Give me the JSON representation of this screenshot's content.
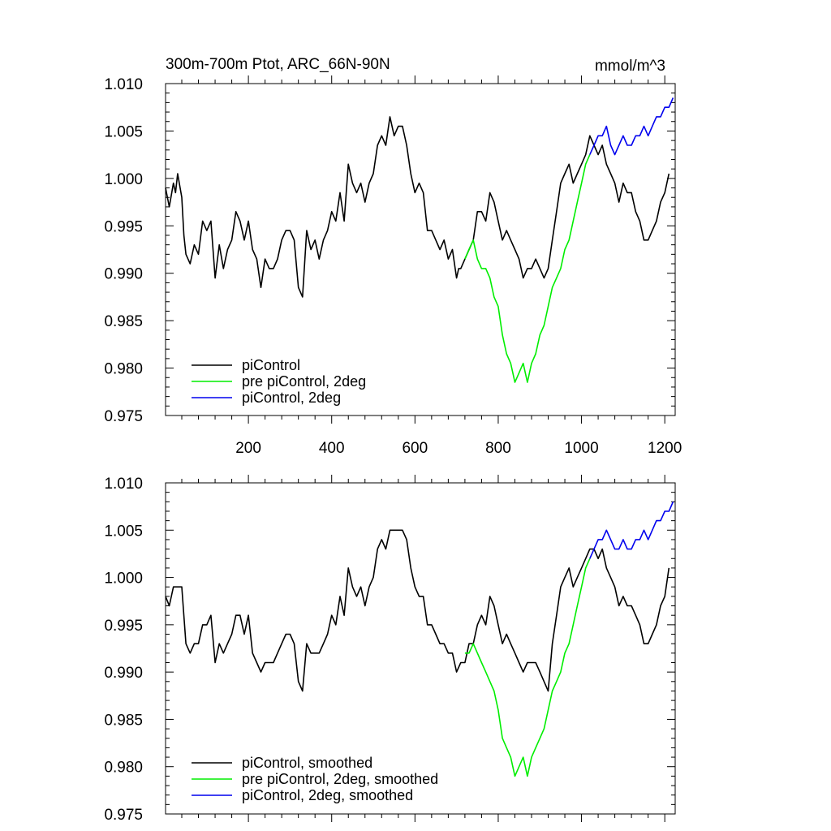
{
  "chart_data": [
    {
      "type": "line",
      "title": "300m-700m Ptot, ARC_66N-90N",
      "units": "mmol/m^3",
      "xlim": [
        1,
        1225
      ],
      "ylim": [
        0.975,
        1.01
      ],
      "x_ticks": [
        200,
        400,
        600,
        800,
        1000,
        1200
      ],
      "x_tick_labels": [
        "200",
        "400",
        "600",
        "800",
        "1000",
        "1200"
      ],
      "y_ticks": [
        0.975,
        0.98,
        0.985,
        0.99,
        0.995,
        1.0,
        1.005,
        1.01
      ],
      "y_tick_labels": [
        "0.975",
        "0.980",
        "0.985",
        "0.990",
        "0.995",
        "1.000",
        "1.005",
        "1.010"
      ],
      "legend_position": "bottom-left",
      "series": [
        {
          "name": "piControl",
          "color": "#000000",
          "x": [
            1,
            10,
            20,
            25,
            30,
            40,
            45,
            50,
            55,
            60,
            70,
            80,
            90,
            100,
            110,
            120,
            130,
            140,
            150,
            160,
            170,
            180,
            190,
            200,
            210,
            220,
            230,
            240,
            250,
            260,
            270,
            280,
            290,
            300,
            310,
            320,
            330,
            340,
            350,
            360,
            370,
            380,
            390,
            400,
            410,
            420,
            430,
            440,
            450,
            460,
            470,
            480,
            490,
            500,
            510,
            520,
            530,
            540,
            550,
            560,
            570,
            580,
            590,
            600,
            610,
            620,
            630,
            640,
            650,
            660,
            670,
            680,
            690,
            700,
            705,
            710,
            720,
            730,
            740,
            750,
            760,
            770,
            780,
            790,
            800,
            810,
            820,
            830,
            840,
            850,
            860,
            870,
            880,
            890,
            900,
            910,
            920,
            930,
            940,
            950,
            960,
            970,
            980,
            990,
            1000,
            1010,
            1020,
            1030,
            1040,
            1050,
            1060,
            1070,
            1080,
            1090,
            1100,
            1110,
            1120,
            1130,
            1140,
            1150,
            1160,
            1170,
            1180,
            1190,
            1200,
            1210
          ],
          "y": [
            0.999,
            0.997,
            0.9995,
            0.9985,
            1.0005,
            0.998,
            0.994,
            0.992,
            0.9915,
            0.991,
            0.993,
            0.992,
            0.9955,
            0.9945,
            0.9955,
            0.9895,
            0.993,
            0.9905,
            0.9925,
            0.9935,
            0.9965,
            0.9955,
            0.9935,
            0.9955,
            0.9925,
            0.9915,
            0.9885,
            0.9915,
            0.9905,
            0.9905,
            0.9915,
            0.9935,
            0.9945,
            0.9945,
            0.9935,
            0.9885,
            0.9875,
            0.9945,
            0.9925,
            0.9935,
            0.9915,
            0.9935,
            0.9945,
            0.9965,
            0.9955,
            0.9985,
            0.9955,
            1.0015,
            0.9995,
            0.9985,
            0.9995,
            0.9975,
            0.9995,
            1.0005,
            1.0035,
            1.0045,
            1.0035,
            1.0065,
            1.0045,
            1.0055,
            1.0055,
            1.0035,
            1.0005,
            0.9985,
            0.9995,
            0.9985,
            0.9945,
            0.9945,
            0.9935,
            0.9925,
            0.9935,
            0.9915,
            0.9925,
            0.9895,
            0.9905,
            0.9905,
            0.9915,
            0.9925,
            0.9935,
            0.9965,
            0.9965,
            0.9955,
            0.9985,
            0.9975,
            0.9955,
            0.9935,
            0.9945,
            0.9935,
            0.9925,
            0.9915,
            0.9895,
            0.9905,
            0.9905,
            0.9915,
            0.9905,
            0.9895,
            0.9905,
            0.9935,
            0.9965,
            0.9995,
            1.0005,
            1.0015,
            0.9995,
            1.0005,
            1.0015,
            1.0025,
            1.0045,
            1.0035,
            1.0025,
            1.0035,
            1.0015,
            1.0005,
            0.9995,
            0.9975,
            0.9995,
            0.9985,
            0.9985,
            0.9965,
            0.9955,
            0.9935,
            0.9935,
            0.9945,
            0.9955,
            0.9975,
            0.9985,
            1.0005
          ]
        },
        {
          "name": "pre piControl, 2deg",
          "color": "#00ee00",
          "x": [
            720,
            730,
            740,
            750,
            760,
            770,
            780,
            790,
            800,
            810,
            820,
            830,
            840,
            850,
            860,
            870,
            880,
            890,
            900,
            910,
            920,
            930,
            940,
            950,
            960,
            970,
            980,
            990,
            1000,
            1010,
            1020
          ],
          "y": [
            0.9915,
            0.9925,
            0.9935,
            0.9915,
            0.9905,
            0.9905,
            0.9895,
            0.9875,
            0.9865,
            0.9835,
            0.9815,
            0.9805,
            0.9785,
            0.9795,
            0.9805,
            0.9785,
            0.9805,
            0.9815,
            0.9835,
            0.9845,
            0.9865,
            0.9885,
            0.9895,
            0.9905,
            0.9925,
            0.9935,
            0.9955,
            0.9975,
            0.9995,
            1.0015,
            1.0025
          ]
        },
        {
          "name": "piControl, 2deg",
          "color": "#0000ee",
          "x": [
            1020,
            1030,
            1040,
            1050,
            1060,
            1070,
            1080,
            1090,
            1100,
            1110,
            1120,
            1130,
            1140,
            1150,
            1160,
            1170,
            1180,
            1190,
            1200,
            1210,
            1220
          ],
          "y": [
            1.0025,
            1.0035,
            1.0045,
            1.0045,
            1.0055,
            1.0035,
            1.0025,
            1.0035,
            1.0045,
            1.0035,
            1.0035,
            1.0045,
            1.0045,
            1.0055,
            1.0045,
            1.0055,
            1.0065,
            1.0065,
            1.0075,
            1.0075,
            1.0085
          ]
        }
      ]
    },
    {
      "type": "line",
      "xlim": [
        1,
        1225
      ],
      "ylim": [
        0.975,
        1.01
      ],
      "x_ticks": [
        200,
        400,
        600,
        800,
        1000,
        1200
      ],
      "y_ticks": [
        0.975,
        0.98,
        0.985,
        0.99,
        0.995,
        1.0,
        1.005,
        1.01
      ],
      "y_tick_labels": [
        "0.975",
        "0.980",
        "0.985",
        "0.990",
        "0.995",
        "1.000",
        "1.005",
        "1.010"
      ],
      "legend_position": "bottom-left",
      "series": [
        {
          "name": "piControl, smoothed",
          "color": "#000000",
          "x": [
            1,
            10,
            20,
            30,
            40,
            50,
            60,
            70,
            80,
            90,
            100,
            110,
            120,
            130,
            140,
            150,
            160,
            170,
            180,
            190,
            200,
            210,
            220,
            230,
            240,
            250,
            260,
            270,
            280,
            290,
            300,
            310,
            320,
            330,
            340,
            350,
            360,
            370,
            380,
            390,
            400,
            410,
            420,
            430,
            440,
            450,
            460,
            470,
            480,
            490,
            500,
            510,
            520,
            530,
            540,
            550,
            560,
            570,
            580,
            590,
            600,
            610,
            620,
            630,
            640,
            650,
            660,
            670,
            680,
            690,
            700,
            710,
            720,
            730,
            740,
            750,
            760,
            770,
            780,
            790,
            800,
            810,
            820,
            830,
            840,
            850,
            860,
            870,
            880,
            890,
            900,
            910,
            920,
            930,
            940,
            950,
            960,
            970,
            980,
            990,
            1000,
            1010,
            1020,
            1030,
            1040,
            1050,
            1060,
            1070,
            1080,
            1090,
            1100,
            1110,
            1120,
            1130,
            1140,
            1150,
            1160,
            1170,
            1180,
            1190,
            1200,
            1210
          ],
          "y": [
            0.998,
            0.997,
            0.999,
            0.999,
            0.999,
            0.993,
            0.992,
            0.993,
            0.993,
            0.995,
            0.995,
            0.996,
            0.991,
            0.993,
            0.992,
            0.993,
            0.994,
            0.996,
            0.996,
            0.994,
            0.996,
            0.992,
            0.991,
            0.99,
            0.991,
            0.991,
            0.991,
            0.992,
            0.993,
            0.994,
            0.994,
            0.993,
            0.989,
            0.988,
            0.993,
            0.992,
            0.992,
            0.992,
            0.993,
            0.994,
            0.996,
            0.995,
            0.998,
            0.996,
            1.001,
            0.999,
            0.998,
            0.999,
            0.997,
            0.999,
            1.0,
            1.003,
            1.004,
            1.003,
            1.005,
            1.005,
            1.005,
            1.005,
            1.004,
            1.001,
            0.999,
            0.998,
            0.998,
            0.995,
            0.995,
            0.994,
            0.993,
            0.993,
            0.992,
            0.992,
            0.99,
            0.991,
            0.991,
            0.993,
            0.993,
            0.995,
            0.996,
            0.995,
            0.998,
            0.997,
            0.995,
            0.993,
            0.994,
            0.993,
            0.992,
            0.991,
            0.99,
            0.991,
            0.991,
            0.991,
            0.99,
            0.989,
            0.988,
            0.993,
            0.996,
            0.999,
            1.0,
            1.001,
            0.999,
            1.0,
            1.001,
            1.002,
            1.003,
            1.003,
            1.002,
            1.003,
            1.001,
            1.0,
            0.999,
            0.997,
            0.998,
            0.997,
            0.997,
            0.996,
            0.995,
            0.993,
            0.993,
            0.994,
            0.995,
            0.997,
            0.998,
            1.001
          ]
        },
        {
          "name": "pre piControl, 2deg, smoothed",
          "color": "#00ee00",
          "x": [
            720,
            730,
            740,
            750,
            760,
            770,
            780,
            790,
            800,
            810,
            820,
            830,
            840,
            850,
            860,
            870,
            880,
            890,
            900,
            910,
            920,
            930,
            940,
            950,
            960,
            970,
            980,
            990,
            1000,
            1010,
            1020
          ],
          "y": [
            0.992,
            0.992,
            0.993,
            0.992,
            0.991,
            0.99,
            0.989,
            0.988,
            0.986,
            0.983,
            0.982,
            0.981,
            0.979,
            0.98,
            0.981,
            0.979,
            0.981,
            0.982,
            0.983,
            0.984,
            0.986,
            0.988,
            0.989,
            0.99,
            0.992,
            0.993,
            0.995,
            0.997,
            0.999,
            1.001,
            1.002
          ]
        },
        {
          "name": "piControl, 2deg, smoothed",
          "color": "#0000ee",
          "x": [
            1020,
            1030,
            1040,
            1050,
            1060,
            1070,
            1080,
            1090,
            1100,
            1110,
            1120,
            1130,
            1140,
            1150,
            1160,
            1170,
            1180,
            1190,
            1200,
            1210,
            1220
          ],
          "y": [
            1.002,
            1.003,
            1.004,
            1.004,
            1.005,
            1.004,
            1.003,
            1.003,
            1.004,
            1.003,
            1.003,
            1.004,
            1.004,
            1.005,
            1.004,
            1.005,
            1.006,
            1.006,
            1.007,
            1.007,
            1.008
          ]
        }
      ]
    }
  ]
}
